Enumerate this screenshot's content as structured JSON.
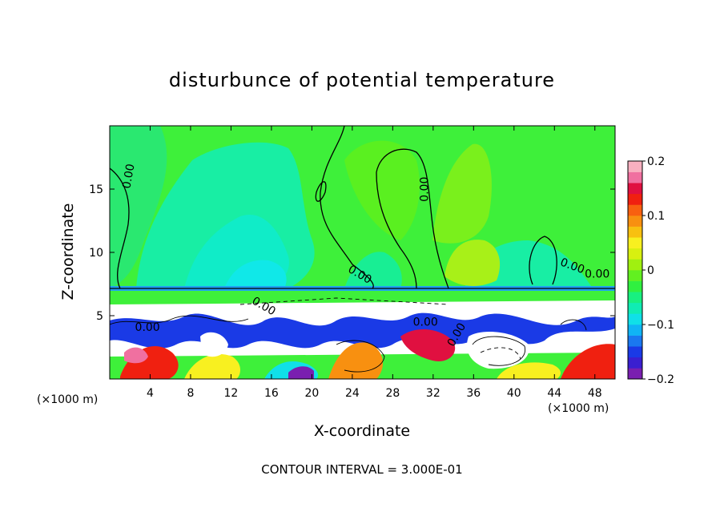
{
  "chart_data": {
    "type": "heatmap",
    "title": "disturbunce of potential temperature",
    "xlabel": "X-coordinate",
    "ylabel": "Z-coordinate",
    "x_unit_label": "(×1000 m)",
    "xlim": [
      0,
      50
    ],
    "ylim": [
      0,
      20
    ],
    "x_ticks": [
      "4",
      "8",
      "12",
      "16",
      "20",
      "24",
      "28",
      "32",
      "36",
      "40",
      "44",
      "48"
    ],
    "y_ticks": [
      "5",
      "10",
      "15"
    ],
    "colorbar": {
      "range": [
        -0.2,
        0.2
      ],
      "tick_labels": [
        "0.2",
        "0.1",
        "0",
        "−0.1",
        "−0.2"
      ],
      "colors": [
        "#7a1fb0",
        "#3a1fd0",
        "#1a3ae6",
        "#1a78f0",
        "#10b4f5",
        "#10e0e8",
        "#10ecb4",
        "#18f080",
        "#30f040",
        "#62f020",
        "#a0f010",
        "#d8f010",
        "#f8f020",
        "#f8c010",
        "#f89010",
        "#f86010",
        "#f02010",
        "#e01040",
        "#f070a0",
        "#f8b0c0"
      ]
    },
    "contour_labels": [
      "0.00",
      "0.00",
      "0.00",
      "0.00",
      "0.00",
      "0.00",
      "0.00",
      "0.00",
      "0.00"
    ],
    "contour_interval_text": "CONTOUR INTERVAL = 3.000E-01"
  }
}
